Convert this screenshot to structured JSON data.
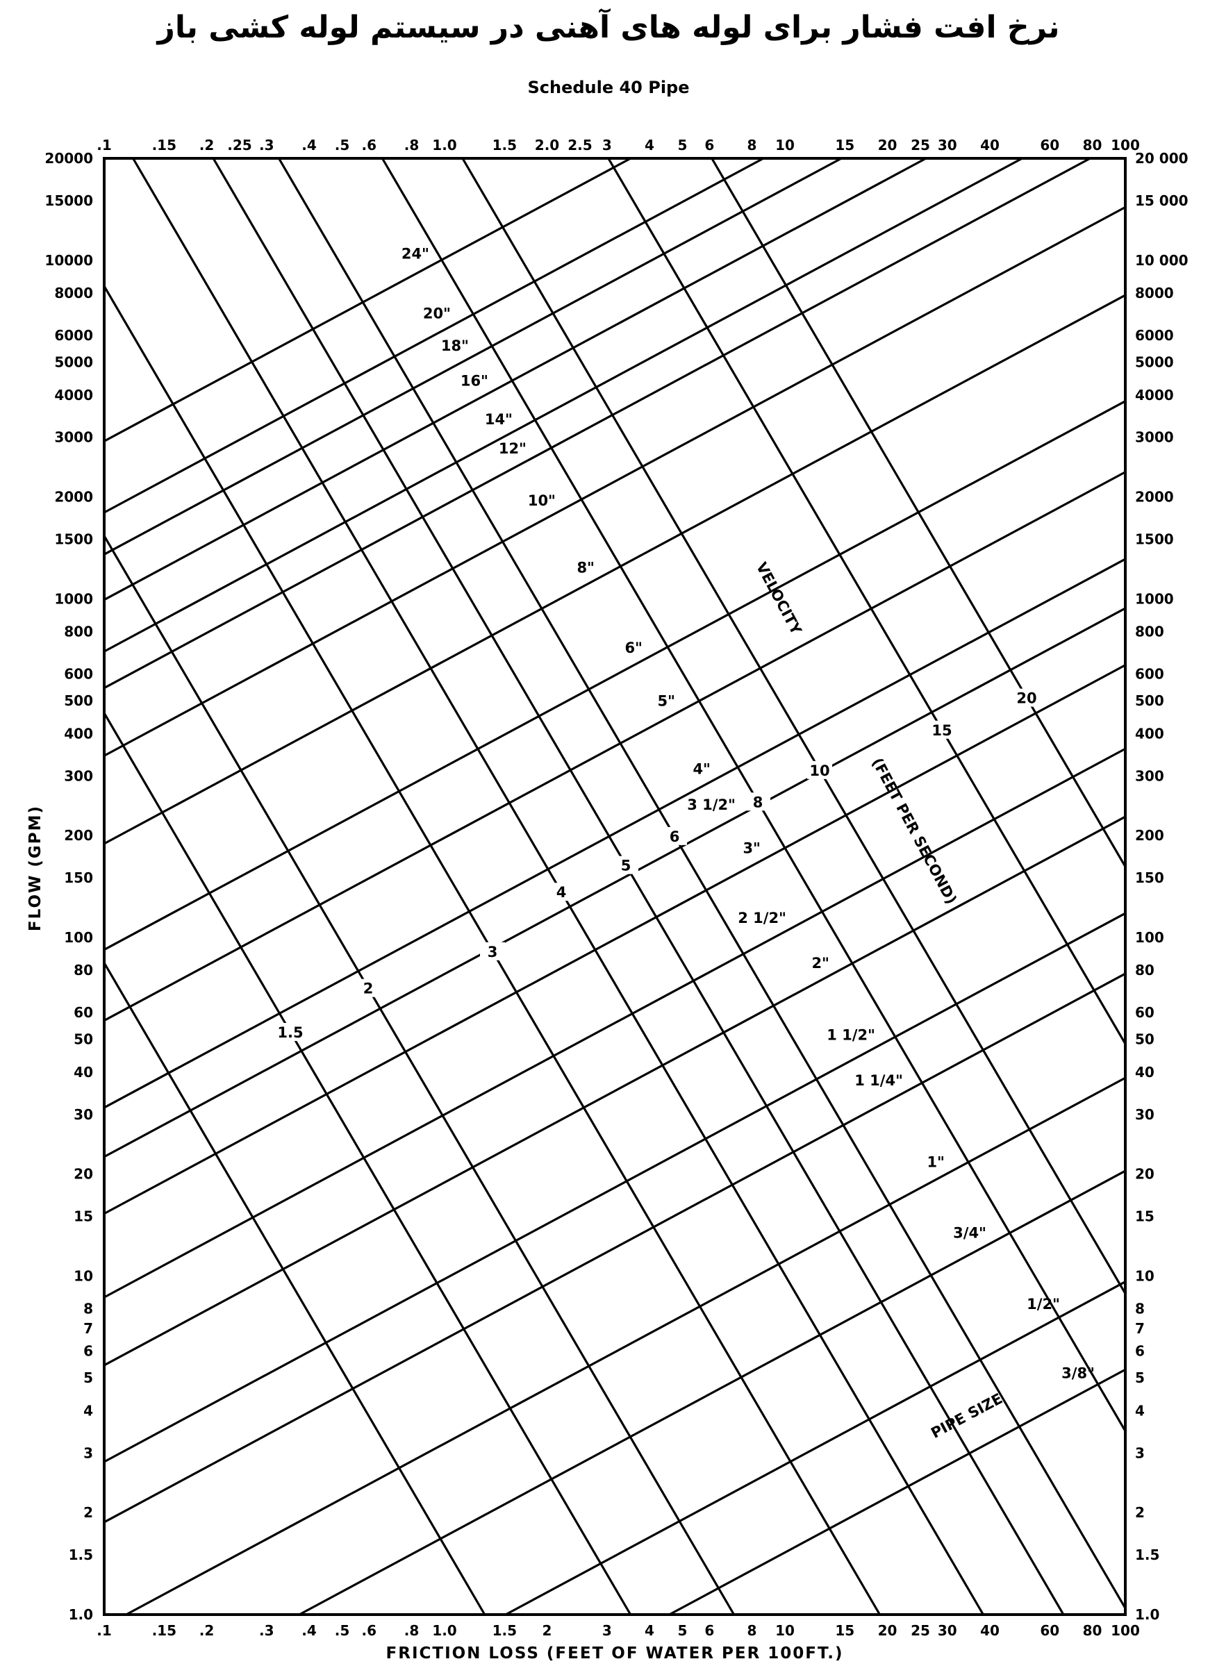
{
  "title": "نرخ افت فشار برای لوله های آهنی در سیستم لوله کشی باز",
  "subtitle": "Schedule 40 Pipe",
  "chart_data": {
    "type": "line",
    "title": "نرخ افت فشار برای لوله های آهنی در سیستم لوله کشی باز",
    "subtitle": "Schedule 40 Pipe",
    "xlabel": "FRICTION LOSS (FEET OF WATER PER 100FT.)",
    "ylabel": "FLOW (GPM)",
    "xscale": "log",
    "yscale": "log",
    "xlim": [
      0.1,
      100
    ],
    "ylim": [
      1,
      20000
    ],
    "grid": false,
    "x_ticks_bottom": [
      ".1",
      ".15",
      ".2",
      ".3",
      ".4",
      ".5",
      ".6",
      ".8",
      "1.0",
      "1.5",
      "2",
      "3",
      "4",
      "5",
      "6",
      "8",
      "10",
      "15",
      "20",
      "25",
      "30",
      "40",
      "60",
      "80",
      "100"
    ],
    "x_ticks_top": [
      ".1",
      ".15",
      ".2",
      ".25",
      ".3",
      ".4",
      ".5",
      ".6",
      ".8",
      "1.0",
      "1.5",
      "2.0",
      "2.5",
      "3",
      "4",
      "5",
      "6",
      "8",
      "10",
      "15",
      "20",
      "25",
      "30",
      "40",
      "60",
      "80",
      "100"
    ],
    "y_ticks_left": [
      "20000",
      "15000",
      "10000",
      "8000",
      "6000",
      "5000",
      "4000",
      "3000",
      "2000",
      "1500",
      "1000",
      "800",
      "600",
      "500",
      "400",
      "300",
      "200",
      "150",
      "100",
      "80",
      "60",
      "50",
      "40",
      "30",
      "20",
      "15",
      "10",
      "8",
      "7",
      "6",
      "5",
      "4",
      "3",
      "2",
      "1.5",
      "1.0"
    ],
    "y_ticks_right": [
      "20 000",
      "15 000",
      "10 000",
      "8000",
      "6000",
      "5000",
      "4000",
      "3000",
      "2000",
      "1500",
      "1000",
      "800",
      "600",
      "500",
      "400",
      "300",
      "200",
      "150",
      "100",
      "80",
      "60",
      "50",
      "40",
      "30",
      "20",
      "15",
      "10",
      "8",
      "7",
      "6",
      "5",
      "4",
      "3",
      "2",
      "1.5",
      "1.0"
    ],
    "pipe_size_title": "PIPE SIZE",
    "pipe_sizes": [
      {
        "label": "24\"",
        "flow_at_1ft": 10131
      },
      {
        "label": "20\"",
        "flow_at_1ft": 6238
      },
      {
        "label": "18\"",
        "flow_at_1ft": 4692
      },
      {
        "label": "16\"",
        "flow_at_1ft": 3445
      },
      {
        "label": "14\"",
        "flow_at_1ft": 2424
      },
      {
        "label": "12\"",
        "flow_at_1ft": 1891
      },
      {
        "label": "10\"",
        "flow_at_1ft": 1193
      },
      {
        "label": "8\"",
        "flow_at_1ft": 656
      },
      {
        "label": "6\"",
        "flow_at_1ft": 319
      },
      {
        "label": "5\"",
        "flow_at_1ft": 197
      },
      {
        "label": "4\"",
        "flow_at_1ft": 109
      },
      {
        "label": "3 1/2\"",
        "flow_at_1ft": 78
      },
      {
        "label": "3\"",
        "flow_at_1ft": 53
      },
      {
        "label": "2 1/2\"",
        "flow_at_1ft": 30
      },
      {
        "label": "2\"",
        "flow_at_1ft": 18.9
      },
      {
        "label": "1 1/2\"",
        "flow_at_1ft": 9.8
      },
      {
        "label": "1 1/4\"",
        "flow_at_1ft": 6.5
      },
      {
        "label": "1\"",
        "flow_at_1ft": 3.2
      },
      {
        "label": "3/4\"",
        "flow_at_1ft": 1.7
      },
      {
        "label": "1/2\"",
        "flow_at_1ft": 0.8
      },
      {
        "label": "3/8\"",
        "flow_at_1ft": 0.44
      }
    ],
    "velocity_title": "VELOCITY",
    "velocity_unit": "(FEET PER SECOND)",
    "velocities": [
      {
        "label": "",
        "value": 1
      },
      {
        "label": "1.5",
        "value": 1.5
      },
      {
        "label": "2",
        "value": 2
      },
      {
        "label": "3",
        "value": 3
      },
      {
        "label": "4",
        "value": 4
      },
      {
        "label": "5",
        "value": 5
      },
      {
        "label": "6",
        "value": 6
      },
      {
        "label": "8",
        "value": 8
      },
      {
        "label": "10",
        "value": 10
      },
      {
        "label": "15",
        "value": 15
      },
      {
        "label": "20",
        "value": 20
      }
    ]
  }
}
